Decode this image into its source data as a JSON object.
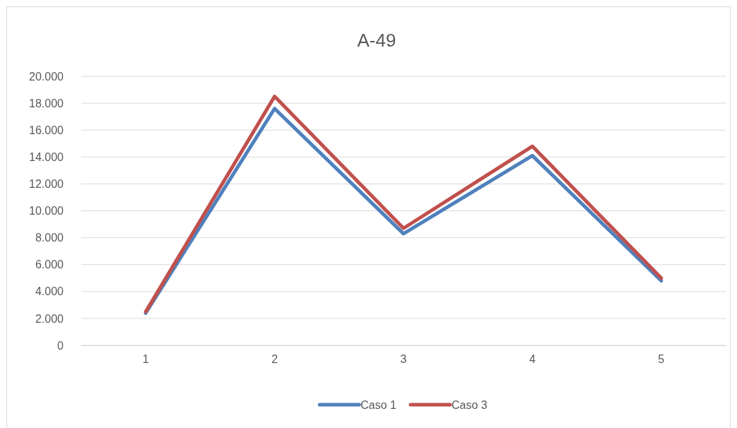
{
  "chart_data": {
    "type": "line",
    "title": "A-49",
    "categories": [
      "1",
      "2",
      "3",
      "4",
      "5"
    ],
    "series": [
      {
        "name": "Caso 1",
        "color": "#4f81bd",
        "values": [
          2400,
          17600,
          8300,
          14100,
          4800
        ]
      },
      {
        "name": "Caso 3",
        "color": "#c0504d",
        "values": [
          2500,
          18500,
          8700,
          14800,
          5000
        ]
      }
    ],
    "ylim": [
      0,
      20000
    ],
    "yticks": [
      0,
      {
        "value": 2000,
        "label": "2.000"
      },
      {
        "value": 4000,
        "label": "4.000"
      },
      {
        "value": 6000,
        "label": "6.000"
      },
      {
        "value": 8000,
        "label": "8.000"
      },
      {
        "value": 10000,
        "label": "10.000"
      },
      {
        "value": 12000,
        "label": "12.000"
      },
      {
        "value": 14000,
        "label": "14.000"
      },
      {
        "value": 16000,
        "label": "16.000"
      },
      {
        "value": 18000,
        "label": "18.000"
      },
      {
        "value": 20000,
        "label": "20.000"
      }
    ],
    "grid": "y",
    "legend": "bottom",
    "marker": "none",
    "line_style": "solid"
  }
}
